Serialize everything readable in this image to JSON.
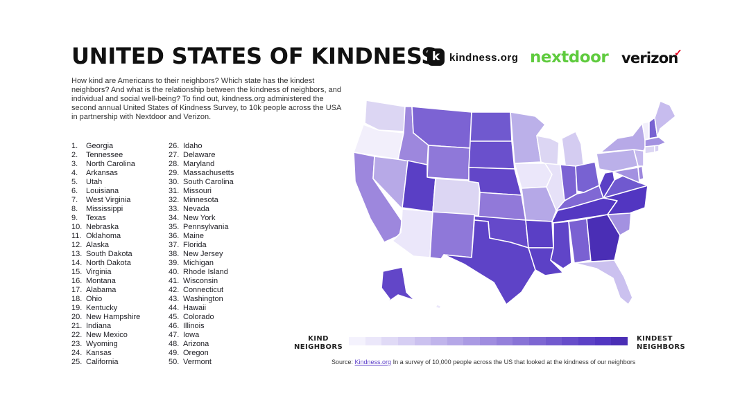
{
  "title": "UNITED STATES OF KINDNESS",
  "intro": "How kind are Americans to their neighbors? Which state has the kindest neighbors? And what is the relationship between the kindness of neighbors, and individual and social well-being? To find out, kindness.org administered the second annual United States of Kindness Survey, to 10k people across the USA in partnership with Nextdoor and Verizon.",
  "logos": {
    "kindness_mark": "k",
    "kindness_text": "kindness.org",
    "nextdoor": "nextdoor",
    "verizon": "verizon",
    "verizon_check": "✓"
  },
  "ranking": [
    {
      "rank": "1.",
      "state": "Georgia"
    },
    {
      "rank": "2.",
      "state": "Tennessee"
    },
    {
      "rank": "3.",
      "state": "North Carolina"
    },
    {
      "rank": "4.",
      "state": "Arkansas"
    },
    {
      "rank": "5.",
      "state": "Utah"
    },
    {
      "rank": "6.",
      "state": "Louisiana"
    },
    {
      "rank": "7.",
      "state": "West Virginia"
    },
    {
      "rank": "8.",
      "state": "Mississippi"
    },
    {
      "rank": "9.",
      "state": "Texas"
    },
    {
      "rank": "10.",
      "state": "Nebraska"
    },
    {
      "rank": "11.",
      "state": "Oklahoma"
    },
    {
      "rank": "12.",
      "state": "Alaska"
    },
    {
      "rank": "13.",
      "state": "South Dakota"
    },
    {
      "rank": "14.",
      "state": "North Dakota"
    },
    {
      "rank": "15.",
      "state": "Virginia"
    },
    {
      "rank": "16.",
      "state": "Montana"
    },
    {
      "rank": "17.",
      "state": "Alabama"
    },
    {
      "rank": "18.",
      "state": "Ohio"
    },
    {
      "rank": "19.",
      "state": "Kentucky"
    },
    {
      "rank": "20.",
      "state": "New Hampshire"
    },
    {
      "rank": "21.",
      "state": "Indiana"
    },
    {
      "rank": "22.",
      "state": "New Mexico"
    },
    {
      "rank": "23.",
      "state": "Wyoming"
    },
    {
      "rank": "24.",
      "state": "Kansas"
    },
    {
      "rank": "25.",
      "state": "California"
    },
    {
      "rank": "26.",
      "state": "Idaho"
    },
    {
      "rank": "27.",
      "state": "Delaware"
    },
    {
      "rank": "28.",
      "state": "Maryland"
    },
    {
      "rank": "29.",
      "state": "Massachusetts"
    },
    {
      "rank": "30.",
      "state": "South Carolina"
    },
    {
      "rank": "31.",
      "state": "Missouri"
    },
    {
      "rank": "32.",
      "state": "Minnesota"
    },
    {
      "rank": "33.",
      "state": "Nevada"
    },
    {
      "rank": "34.",
      "state": "New York"
    },
    {
      "rank": "35.",
      "state": "Pennsylvania"
    },
    {
      "rank": "36.",
      "state": "Maine"
    },
    {
      "rank": "37.",
      "state": "Florida"
    },
    {
      "rank": "38.",
      "state": "New Jersey"
    },
    {
      "rank": "39.",
      "state": "Michigan"
    },
    {
      "rank": "40.",
      "state": "Rhode Island"
    },
    {
      "rank": "41.",
      "state": "Wisconsin"
    },
    {
      "rank": "42.",
      "state": "Connecticut"
    },
    {
      "rank": "43.",
      "state": "Washington"
    },
    {
      "rank": "44.",
      "state": "Hawaii"
    },
    {
      "rank": "45.",
      "state": "Colorado"
    },
    {
      "rank": "46.",
      "state": "Illinois"
    },
    {
      "rank": "47.",
      "state": "Iowa"
    },
    {
      "rank": "48.",
      "state": "Arizona"
    },
    {
      "rank": "49.",
      "state": "Oregon"
    },
    {
      "rank": "50.",
      "state": "Vermont"
    }
  ],
  "legend": {
    "low_label": "KIND NEIGHBORS",
    "high_label": "KINDEST NEIGHBORS",
    "colors": [
      "#f4f2fd",
      "#ebe7fa",
      "#e0daf6",
      "#d6cef3",
      "#cbc1ef",
      "#c0b4eb",
      "#b5a7e7",
      "#aa9ae3",
      "#9f8cdf",
      "#9480db",
      "#8873d6",
      "#7d66d2",
      "#725ace",
      "#674dca",
      "#5c41c6",
      "#5236c1",
      "#4a2eb5"
    ]
  },
  "source": {
    "prefix": "Source: ",
    "link": "Kindness.org",
    "text": " In a survey of 10,000 people across the US that looked at the kindness of our neighbors"
  }
}
